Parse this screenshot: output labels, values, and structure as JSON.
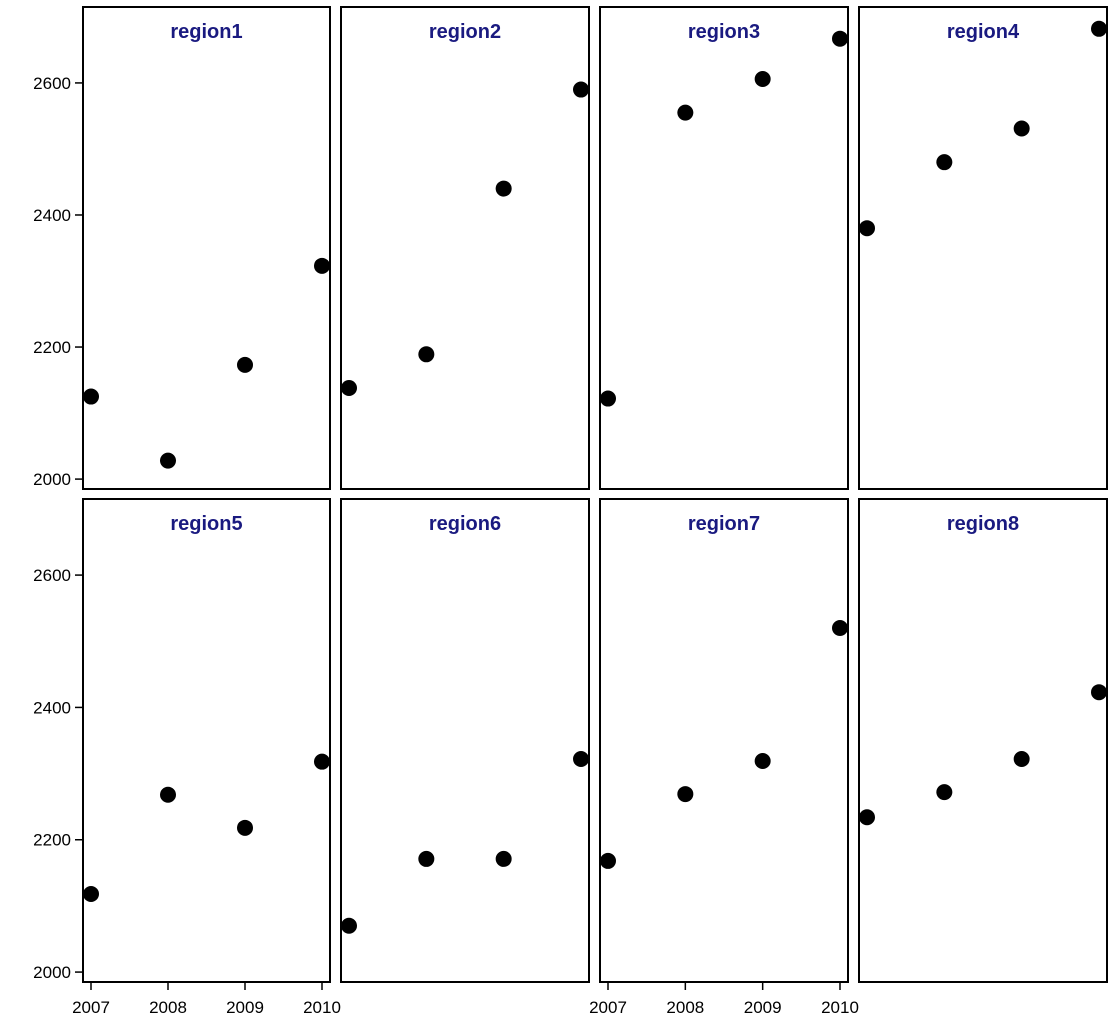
{
  "chart_data": {
    "type": "scatter",
    "layout": "facet-grid",
    "rows": 2,
    "cols": 4,
    "ylim": [
      1985,
      2715
    ],
    "xlim": [
      2007,
      2010
    ],
    "y_ticks": [
      2000,
      2200,
      2400,
      2600
    ],
    "x_ticks": [
      2007,
      2008,
      2009,
      2010
    ],
    "x_tick_labels": [
      "2007",
      "2008",
      "2009",
      "2010"
    ],
    "y_tick_labels": [
      "2000",
      "2200",
      "2400",
      "2600"
    ],
    "ylabel": "",
    "marker_color": "#000000",
    "title_color": "#1a1a80",
    "panels": [
      {
        "title": "region1",
        "x": [
          2007,
          2008,
          2009,
          2010
        ],
        "y": [
          2125,
          2028,
          2173,
          2323
        ]
      },
      {
        "title": "region2",
        "x": [
          2007,
          2008,
          2009,
          2010
        ],
        "y": [
          2138,
          2189,
          2440,
          2590
        ]
      },
      {
        "title": "region3",
        "x": [
          2007,
          2008,
          2009,
          2010
        ],
        "y": [
          2122,
          2555,
          2606,
          2667
        ]
      },
      {
        "title": "region4",
        "x": [
          2007,
          2008,
          2009,
          2010
        ],
        "y": [
          2380,
          2480,
          2531,
          2682
        ]
      },
      {
        "title": "region5",
        "x": [
          2007,
          2008,
          2009,
          2010
        ],
        "y": [
          2118,
          2268,
          2218,
          2318
        ]
      },
      {
        "title": "region6",
        "x": [
          2007,
          2008,
          2009,
          2010
        ],
        "y": [
          2070,
          2171,
          2171,
          2322
        ]
      },
      {
        "title": "region7",
        "x": [
          2007,
          2008,
          2009,
          2010
        ],
        "y": [
          2168,
          2269,
          2319,
          2520
        ]
      },
      {
        "title": "region8",
        "x": [
          2007,
          2008,
          2009,
          2010
        ],
        "y": [
          2234,
          2272,
          2322,
          2423
        ]
      }
    ]
  }
}
